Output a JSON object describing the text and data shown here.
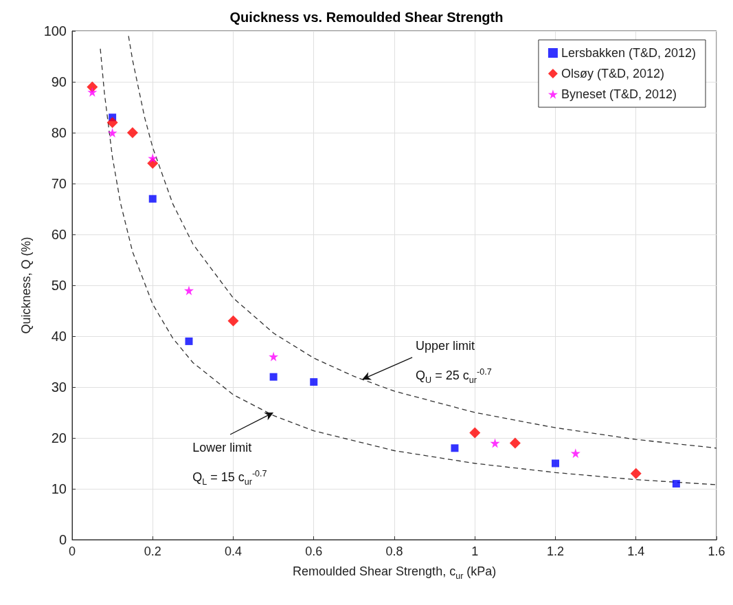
{
  "chart_data": {
    "type": "scatter",
    "title": "Quickness vs. Remoulded Shear Strength",
    "xlabel": "Remoulded Shear Strength, c$_{ur}$ (kPa)",
    "ylabel": "Quickness, Q (%)",
    "xlim": [
      0,
      1.6
    ],
    "xticks": [
      0,
      0.2,
      0.4,
      0.6,
      0.8,
      1,
      1.2,
      1.4,
      1.6
    ],
    "ylim": [
      0,
      100
    ],
    "yticks": [
      0,
      10,
      20,
      30,
      40,
      50,
      60,
      70,
      80,
      90,
      100
    ],
    "grid": true,
    "legend": "top right",
    "series": [
      {
        "name": "Lersbakken (T&D, 2012)",
        "color": "#0000ff",
        "marker": "square",
        "x": [
          0.1,
          0.2,
          0.29,
          0.5,
          0.6,
          0.95,
          1.2,
          1.5
        ],
        "values": [
          83,
          67,
          39,
          32,
          31,
          18,
          15,
          11
        ]
      },
      {
        "name": "Olsøy (T&D, 2012)",
        "color": "#ff0000",
        "marker": "diamond",
        "x": [
          0.05,
          0.1,
          0.15,
          0.2,
          0.4,
          1.0,
          1.1,
          1.4
        ],
        "values": [
          89,
          82,
          80,
          74,
          43,
          21,
          19,
          13
        ]
      },
      {
        "name": "Byneset (T&D, 2012)",
        "color": "#ff00ff",
        "marker": "star",
        "x": [
          0.05,
          0.1,
          0.2,
          0.29,
          0.5,
          1.05,
          1.25
        ],
        "values": [
          88,
          80,
          75,
          49,
          36,
          19,
          17
        ]
      },
      {
        "type": "line",
        "color": "#333333",
        "marker": "none",
        "line_style": "dashed",
        "x": [
          0.14,
          0.15,
          0.18,
          0.2,
          0.25,
          0.3,
          0.4,
          0.5,
          0.6,
          0.7,
          0.8,
          1.0,
          1.2,
          1.4,
          1.6
        ],
        "values": [
          99.0,
          94.3,
          83.0,
          77.1,
          66.0,
          58.1,
          47.5,
          40.6,
          35.7,
          32.1,
          29.2,
          25.0,
          22.0,
          19.7,
          18.0
        ]
      },
      {
        "type": "line",
        "color": "#333333",
        "marker": "none",
        "line_style": "dashed",
        "x": [
          0.07,
          0.08,
          0.1,
          0.12,
          0.15,
          0.2,
          0.25,
          0.3,
          0.4,
          0.5,
          0.6,
          0.8,
          1.0,
          1.2,
          1.4,
          1.6
        ],
        "values": [
          96.5,
          87.9,
          75.2,
          66.2,
          56.6,
          46.3,
          39.6,
          34.8,
          28.5,
          24.4,
          21.4,
          17.5,
          15.0,
          13.2,
          11.8,
          10.8
        ]
      }
    ],
    "annotations": [
      {
        "text": "Upper limit",
        "x": 0.72,
        "y": 31.5
      },
      "Q$_{U}$ = 25 c$_{ur}$$^{-0.7}$",
      {
        "text": "Lower limit",
        "x": 0.5,
        "y": 25
      },
      "Q$_{L}$ = 15 c$_{ur}$$^{-0.7}$"
    ]
  }
}
